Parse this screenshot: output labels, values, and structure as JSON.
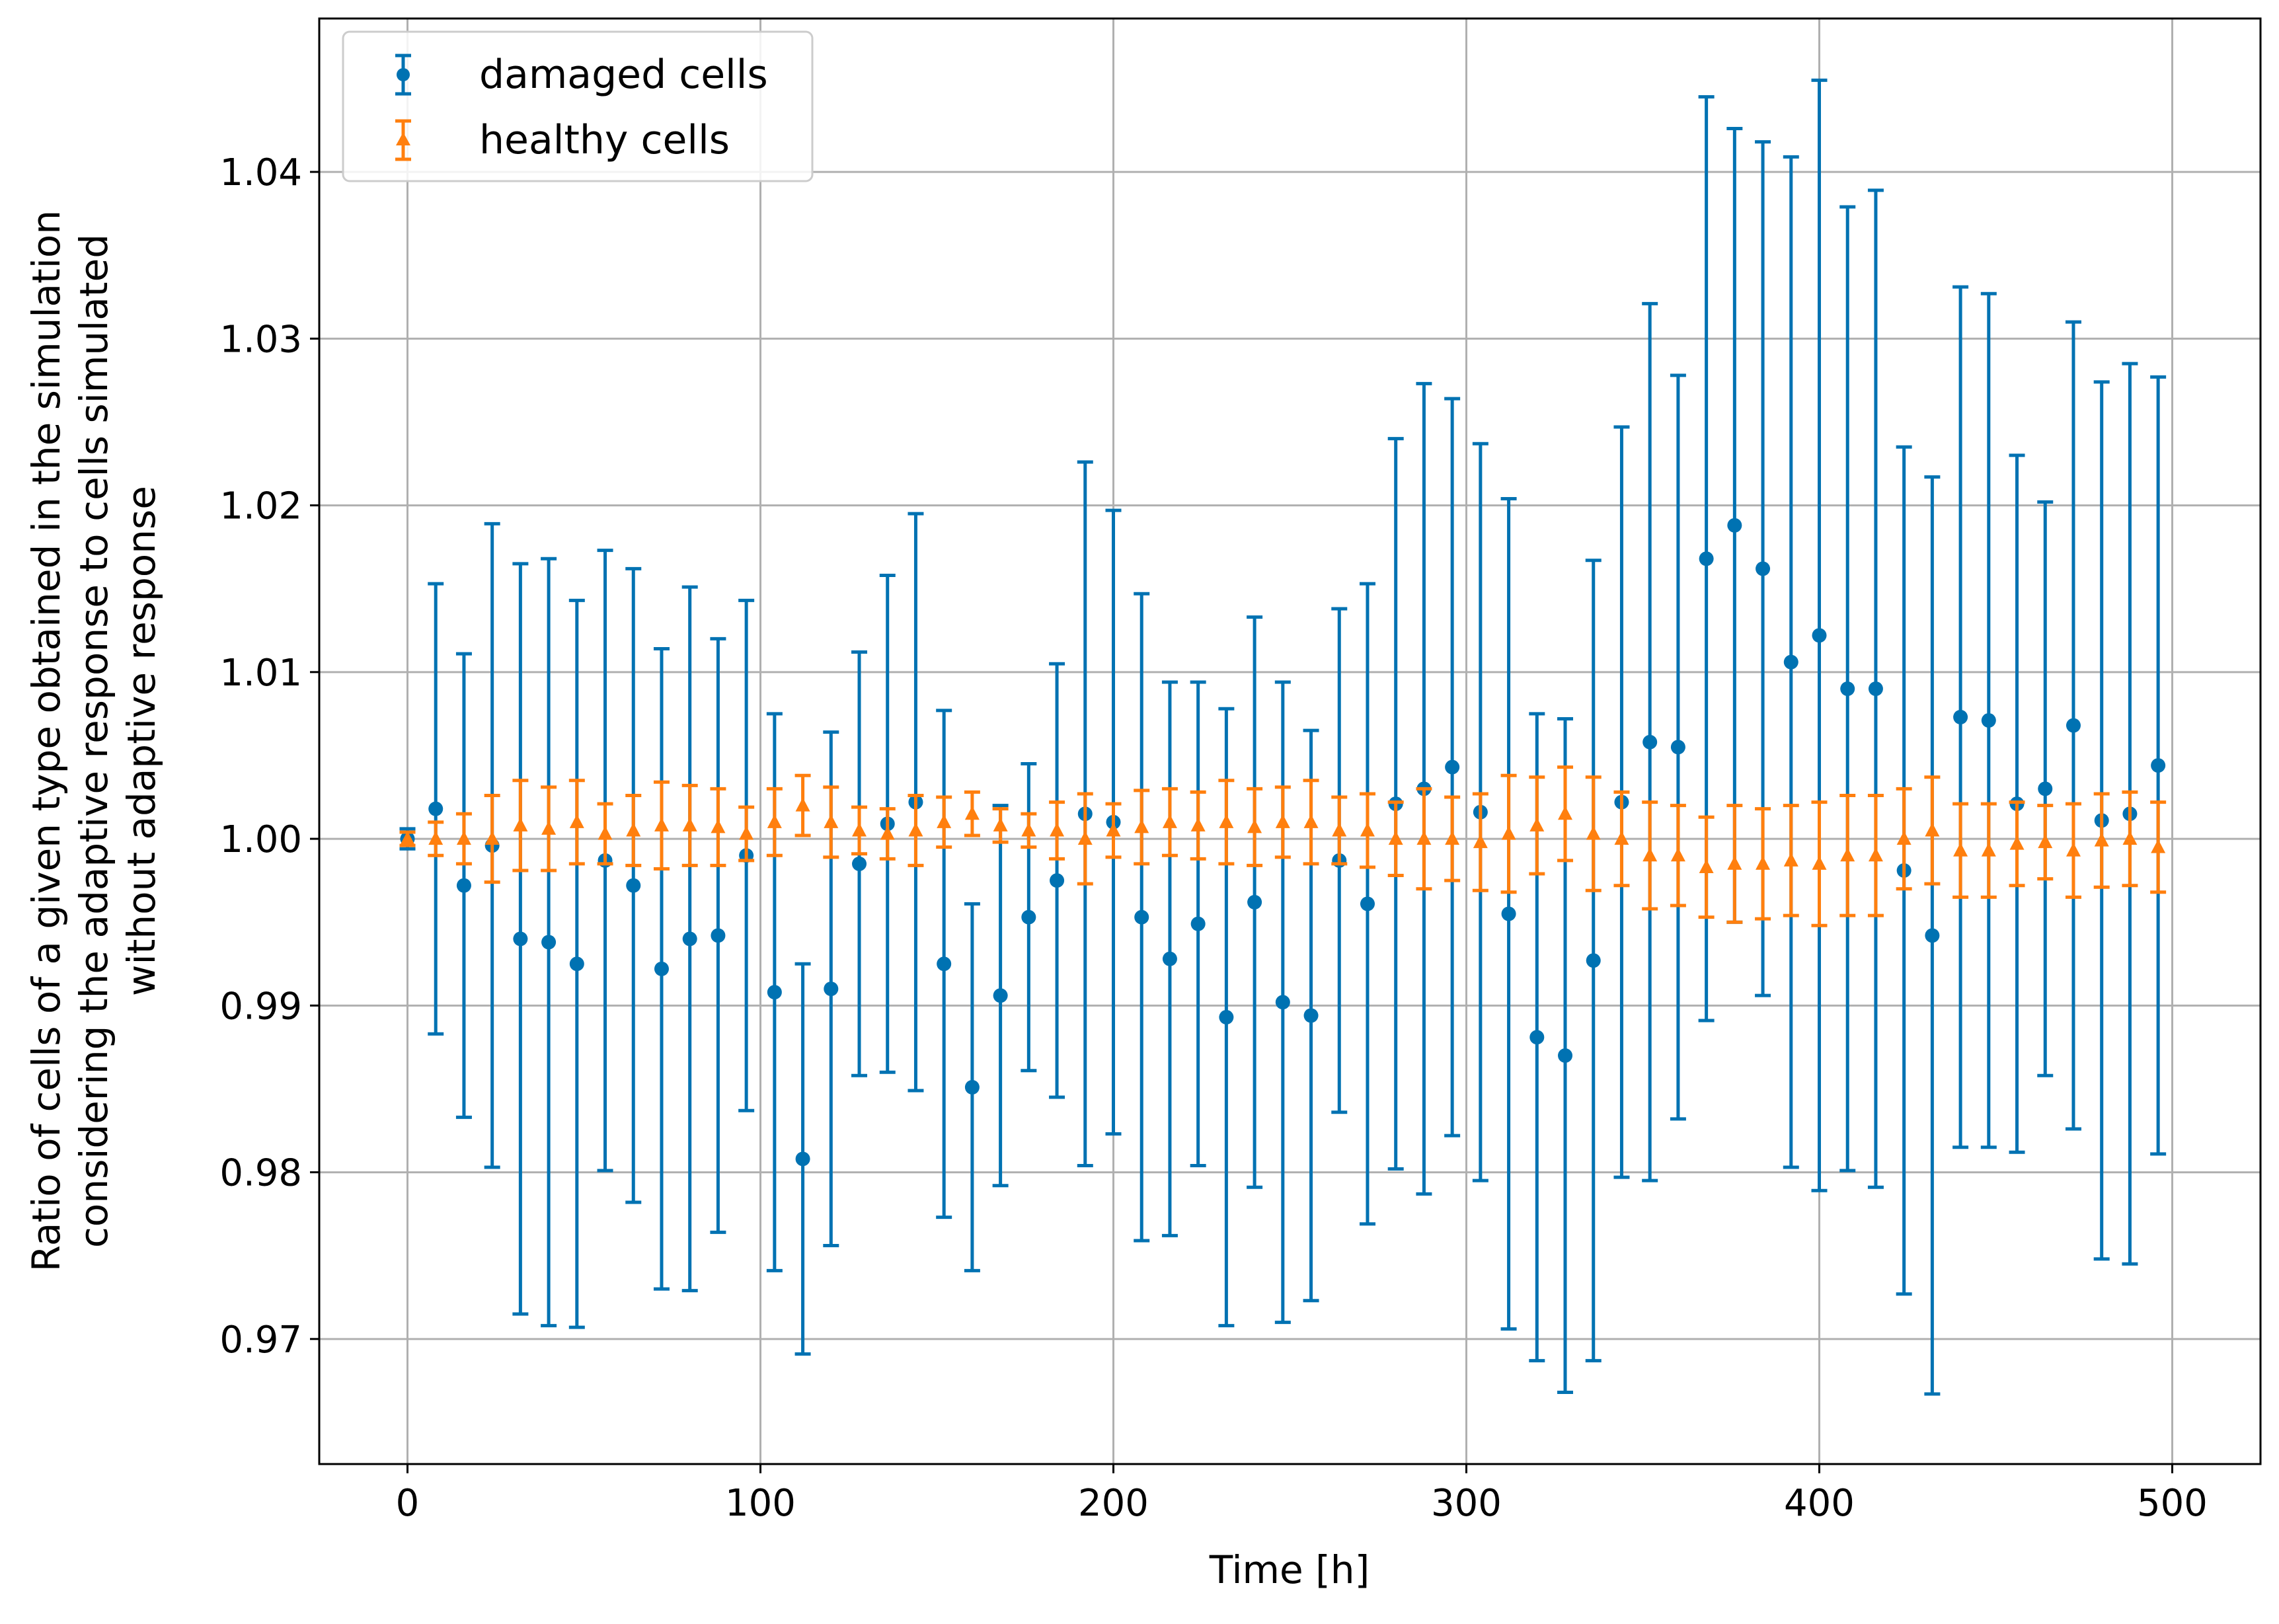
{
  "chart_data": {
    "type": "scatter",
    "title": "",
    "xlabel": "Time [h]",
    "ylabel_lines": [
      "Ratio of cells of a given type obtained in the simulation",
      "considering the adaptive response to cells simulated",
      "without adaptive response"
    ],
    "xlim": [
      -25,
      525
    ],
    "ylim": [
      0.9625,
      1.0492
    ],
    "x_ticks": [
      0,
      100,
      200,
      300,
      400,
      500
    ],
    "x_tick_labels": [
      "0",
      "100",
      "200",
      "300",
      "400",
      "500"
    ],
    "y_ticks": [
      0.97,
      0.98,
      0.99,
      1.0,
      1.01,
      1.02,
      1.03,
      1.04
    ],
    "y_tick_labels": [
      "0.97",
      "0.98",
      "0.99",
      "1.00",
      "1.01",
      "1.02",
      "1.03",
      "1.04"
    ],
    "grid": true,
    "legend_position": "top-left",
    "series": [
      {
        "name": "damaged cells",
        "color": "#0072B2",
        "marker": "circle",
        "x": [
          0,
          8,
          16,
          24,
          32,
          40,
          48,
          56,
          64,
          72,
          80,
          88,
          96,
          104,
          112,
          120,
          128,
          136,
          144,
          152,
          160,
          168,
          176,
          184,
          192,
          200,
          208,
          216,
          224,
          232,
          240,
          248,
          256,
          264,
          272,
          280,
          288,
          296,
          304,
          312,
          320,
          328,
          336,
          344,
          352,
          360,
          368,
          376,
          384,
          392,
          400,
          408,
          416,
          424,
          432,
          440,
          448,
          456,
          464,
          472,
          480,
          488,
          496
        ],
        "y": [
          1.0,
          1.0018,
          0.9972,
          0.9996,
          0.994,
          0.9938,
          0.9925,
          0.9987,
          0.9972,
          0.9922,
          0.994,
          0.9942,
          0.999,
          0.9908,
          0.9808,
          0.991,
          0.9985,
          1.0009,
          1.0022,
          0.9925,
          0.9851,
          0.9906,
          0.9953,
          0.9975,
          1.0015,
          1.001,
          0.9953,
          0.9928,
          0.9949,
          0.9893,
          0.9962,
          0.9902,
          0.9894,
          0.9987,
          0.9961,
          1.0021,
          1.003,
          1.0043,
          1.0016,
          0.9955,
          0.9881,
          0.987,
          0.9927,
          1.0022,
          1.0058,
          1.0055,
          1.0168,
          1.0188,
          1.0162,
          1.0106,
          1.0122,
          1.009,
          1.009,
          0.9981,
          0.9942,
          1.0073,
          1.0071,
          1.0021,
          1.003,
          1.0068,
          1.0011,
          1.0015,
          1.0044
        ],
        "err": [
          0.0006,
          0.0135,
          0.0139,
          0.0193,
          0.0225,
          0.023,
          0.0218,
          0.0186,
          0.019,
          0.0192,
          0.0211,
          0.0178,
          0.0153,
          0.0167,
          0.0117,
          0.0154,
          0.0127,
          0.0149,
          0.0173,
          0.0152,
          0.011,
          0.0114,
          0.0092,
          0.013,
          0.0211,
          0.0187,
          0.0194,
          0.0166,
          0.0145,
          0.0185,
          0.0171,
          0.0192,
          0.0171,
          0.0151,
          0.0192,
          0.0219,
          0.0243,
          0.0221,
          0.0221,
          0.0249,
          0.0194,
          0.0202,
          0.024,
          0.0225,
          0.0263,
          0.0223,
          0.0277,
          0.0238,
          0.0256,
          0.0303,
          0.0333,
          0.0289,
          0.0299,
          0.0254,
          0.0275,
          0.0258,
          0.0256,
          0.0209,
          0.0172,
          0.0242,
          0.0263,
          0.027,
          0.0233
        ]
      },
      {
        "name": "healthy cells",
        "color": "#FF7F0E",
        "marker": "triangle",
        "x": [
          0,
          8,
          16,
          24,
          32,
          40,
          48,
          56,
          64,
          72,
          80,
          88,
          96,
          104,
          112,
          120,
          128,
          136,
          144,
          152,
          160,
          168,
          176,
          184,
          192,
          200,
          208,
          216,
          224,
          232,
          240,
          248,
          256,
          264,
          272,
          280,
          288,
          296,
          304,
          312,
          320,
          328,
          336,
          344,
          352,
          360,
          368,
          376,
          384,
          392,
          400,
          408,
          416,
          424,
          432,
          440,
          448,
          456,
          464,
          472,
          480,
          488,
          496
        ],
        "y": [
          1.0,
          1.0,
          1.0,
          1.0,
          1.0008,
          1.0006,
          1.001,
          1.0003,
          1.0005,
          1.0008,
          1.0008,
          1.0007,
          1.0003,
          1.001,
          1.002,
          1.001,
          1.0005,
          1.0003,
          1.0005,
          1.001,
          1.0015,
          1.0008,
          1.0005,
          1.0005,
          1.0,
          1.0005,
          1.0007,
          1.001,
          1.0008,
          1.001,
          1.0007,
          1.001,
          1.001,
          1.0005,
          1.0005,
          1.0,
          1.0,
          1.0,
          0.9998,
          1.0003,
          1.0008,
          1.0015,
          1.0003,
          1.0,
          0.999,
          0.999,
          0.9983,
          0.9985,
          0.9985,
          0.9987,
          0.9985,
          0.999,
          0.999,
          1.0,
          1.0005,
          0.9993,
          0.9993,
          0.9997,
          0.9998,
          0.9993,
          0.9999,
          1.0,
          0.9995
        ],
        "err": [
          0.0004,
          0.001,
          0.0015,
          0.0026,
          0.0027,
          0.0025,
          0.0025,
          0.0018,
          0.0021,
          0.0026,
          0.0024,
          0.0023,
          0.0016,
          0.002,
          0.0018,
          0.0021,
          0.0014,
          0.0015,
          0.0021,
          0.0015,
          0.0013,
          0.001,
          0.001,
          0.0017,
          0.0027,
          0.0016,
          0.0022,
          0.002,
          0.002,
          0.0025,
          0.0023,
          0.0021,
          0.0025,
          0.002,
          0.0022,
          0.0022,
          0.003,
          0.0025,
          0.0029,
          0.0035,
          0.0029,
          0.0028,
          0.0034,
          0.0028,
          0.0032,
          0.003,
          0.003,
          0.0035,
          0.0033,
          0.0033,
          0.0037,
          0.0036,
          0.0036,
          0.003,
          0.0032,
          0.0028,
          0.0028,
          0.0025,
          0.0022,
          0.0028,
          0.0028,
          0.0028,
          0.0027
        ]
      }
    ]
  }
}
